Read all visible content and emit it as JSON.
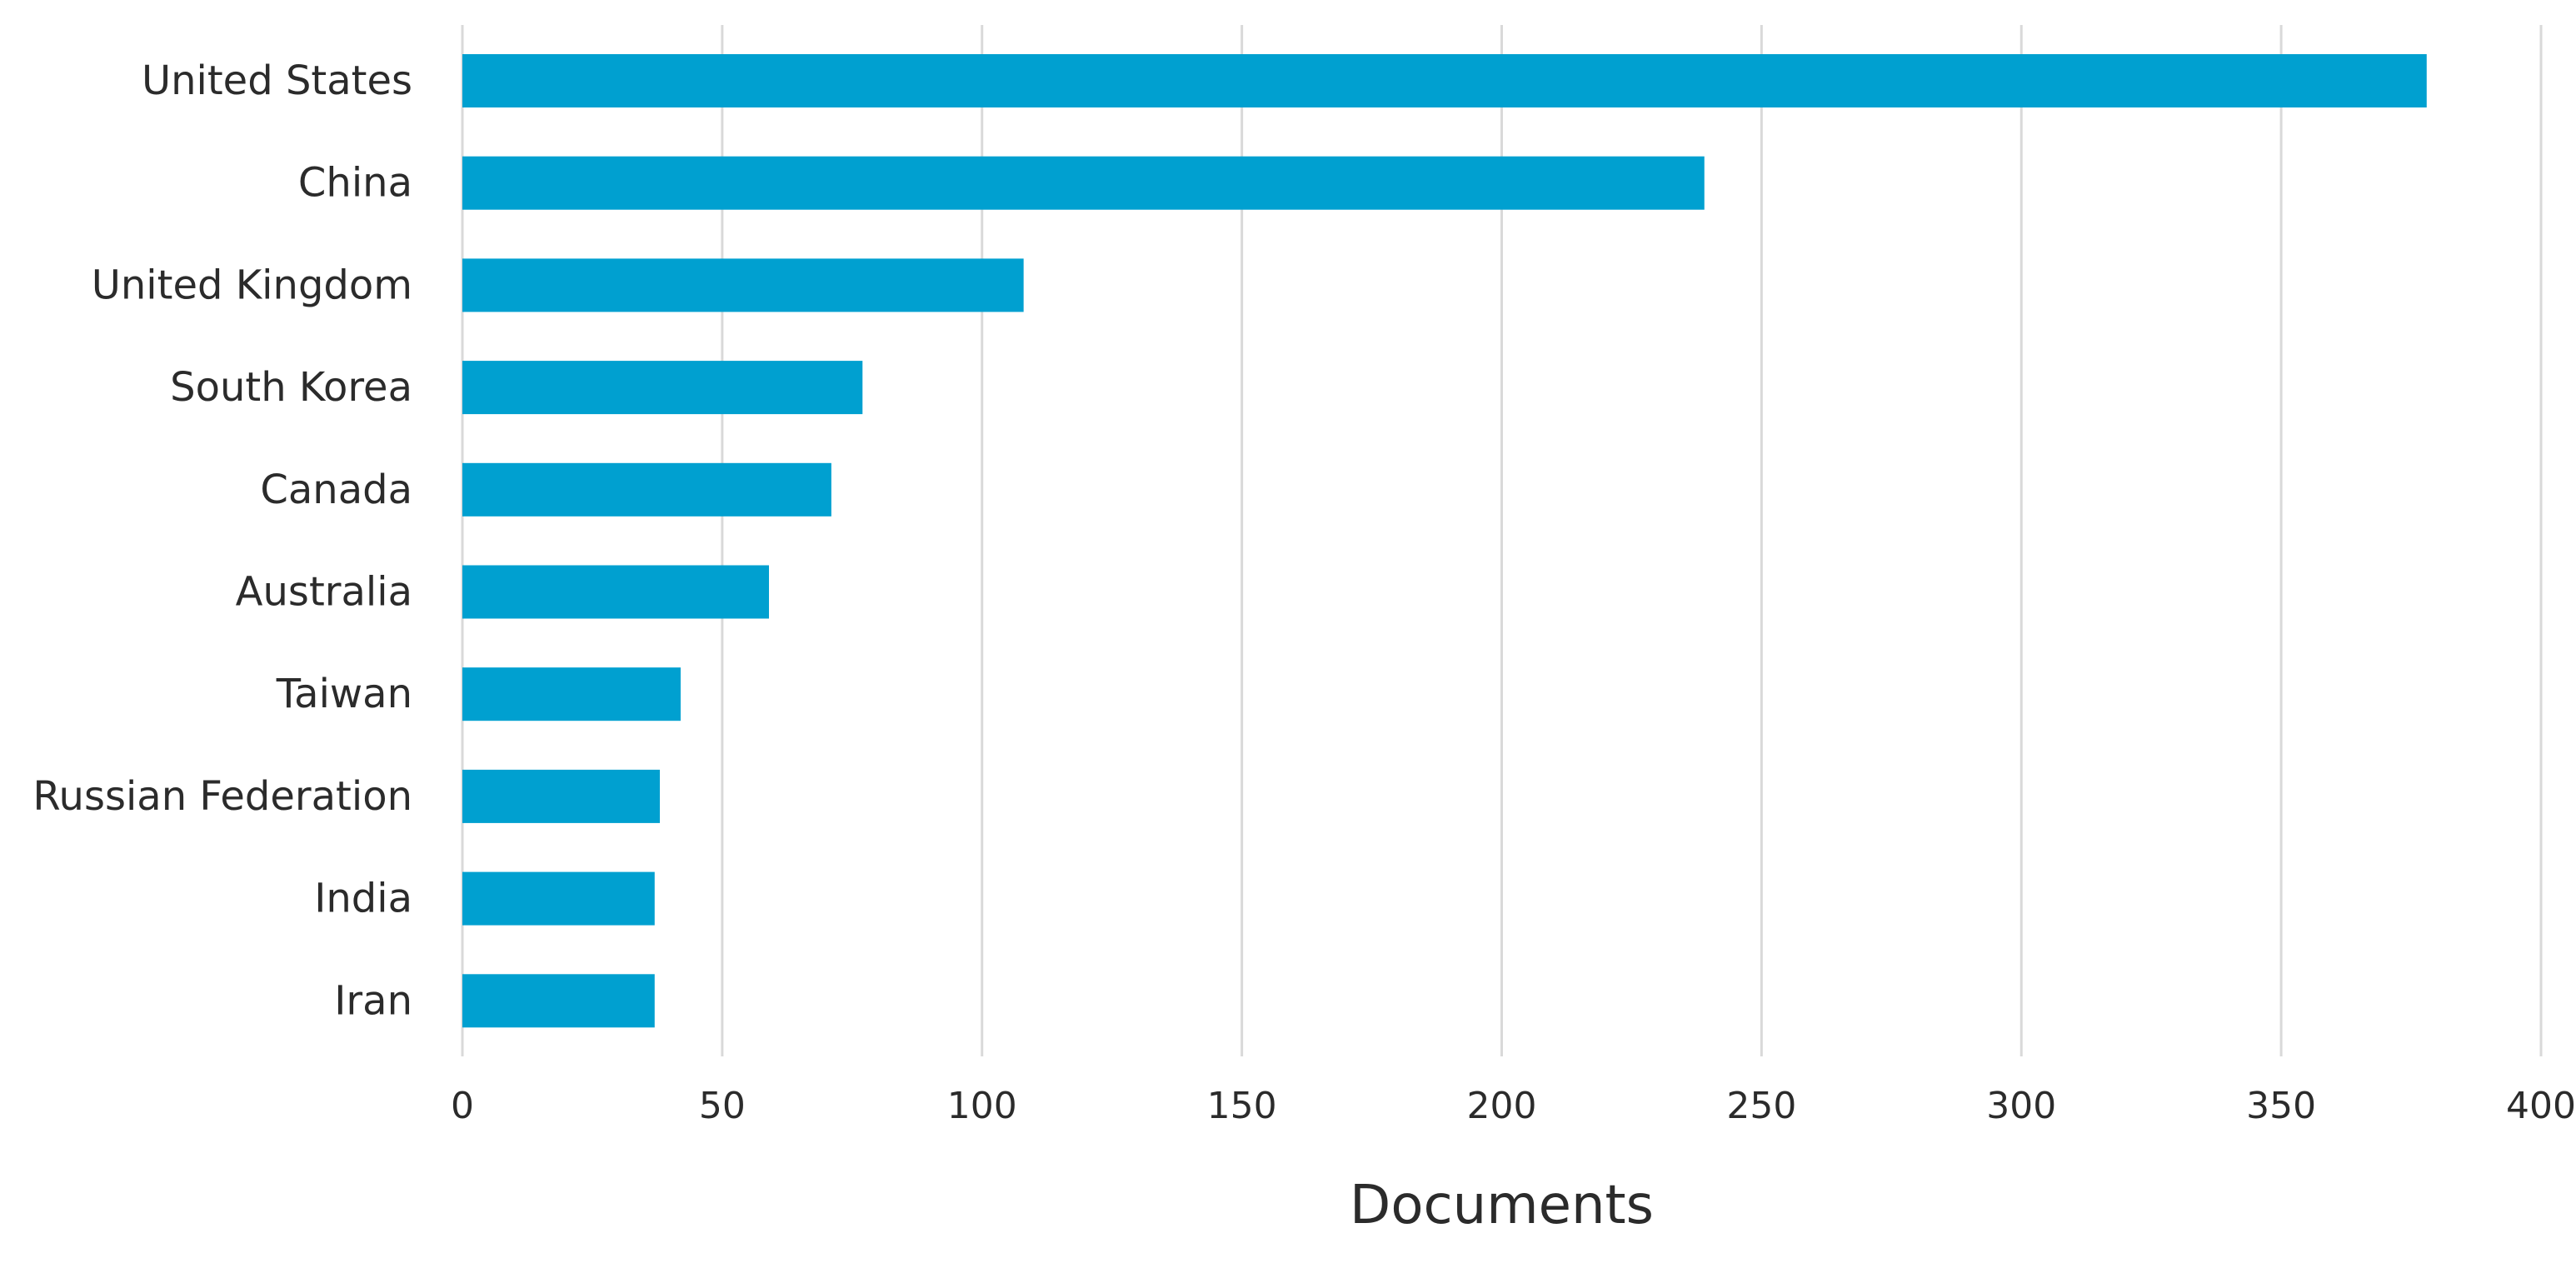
{
  "chart_data": {
    "type": "bar",
    "orientation": "horizontal",
    "title": "",
    "xlabel": "Documents",
    "ylabel": "",
    "categories": [
      "United States",
      "China",
      "United Kingdom",
      "South Korea",
      "Canada",
      "Australia",
      "Taiwan",
      "Russian Federation",
      "India",
      "Iran"
    ],
    "values": [
      378,
      239,
      108,
      77,
      71,
      59,
      42,
      38,
      37,
      37
    ],
    "xlim": [
      0,
      400
    ],
    "xticks": [
      0,
      50,
      100,
      150,
      200,
      250,
      300,
      350,
      400
    ],
    "xtick_labels": [
      "0",
      "50",
      "100",
      "150",
      "200",
      "250",
      "300",
      "350",
      "400"
    ],
    "grid": true,
    "legend": "none",
    "bar_color": "#00a0d0",
    "grid_color": "#d9d9d9"
  }
}
